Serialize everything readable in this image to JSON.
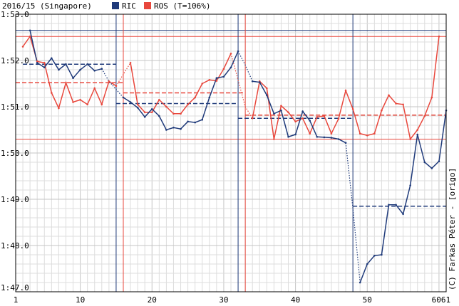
{
  "header": {
    "title": "2016/15 (Singapore)",
    "legend": [
      {
        "label": "RIC",
        "color": "#1f3a7a"
      },
      {
        "label": "ROS (T=106%)",
        "color": "#e8473c"
      }
    ]
  },
  "credit": "(C) Farkas Péter - [origo]",
  "chart_data": {
    "type": "line",
    "title": "2016/15 (Singapore)",
    "xlabel": "",
    "ylabel": "",
    "xlim": [
      1,
      61
    ],
    "ylim": [
      107,
      113
    ],
    "x_ticks": [
      1,
      10,
      20,
      30,
      40,
      50,
      60,
      61
    ],
    "x_tick_labels": [
      "1",
      "10",
      "20",
      "30",
      "40",
      "50",
      "60",
      "61"
    ],
    "y_ticks": [
      107,
      108,
      109,
      110,
      111,
      112,
      113
    ],
    "y_tick_labels": [
      "1:47.0",
      "1:48.0",
      "1:49.0",
      "1:50.0",
      "1:51.0",
      "1:52.0",
      "1:53.0"
    ],
    "grid": true,
    "series": [
      {
        "name": "RIC",
        "color": "#1f3a7a",
        "laps_solid": [
          [
            [
              3,
              112.65
            ],
            [
              4,
              111.95
            ],
            [
              5,
              111.85
            ],
            [
              6,
              112.05
            ],
            [
              7,
              111.8
            ],
            [
              8,
              111.92
            ],
            [
              9,
              111.62
            ],
            [
              10,
              111.8
            ],
            [
              11,
              111.92
            ],
            [
              12,
              111.78
            ],
            [
              13,
              111.82
            ]
          ],
          [
            [
              16,
              111.2
            ],
            [
              17,
              111.1
            ],
            [
              18,
              110.98
            ],
            [
              19,
              110.78
            ],
            [
              20,
              110.95
            ],
            [
              21,
              110.8
            ],
            [
              22,
              110.5
            ],
            [
              23,
              110.55
            ],
            [
              24,
              110.52
            ],
            [
              25,
              110.68
            ],
            [
              26,
              110.66
            ],
            [
              27,
              110.72
            ],
            [
              28,
              111.2
            ],
            [
              29,
              111.62
            ],
            [
              30,
              111.65
            ],
            [
              31,
              111.85
            ],
            [
              32,
              112.2
            ]
          ],
          [
            [
              34,
              111.55
            ],
            [
              35,
              111.53
            ],
            [
              36,
              111.25
            ],
            [
              37,
              110.85
            ],
            [
              38,
              110.92
            ],
            [
              39,
              110.35
            ],
            [
              40,
              110.4
            ],
            [
              41,
              110.9
            ],
            [
              42,
              110.7
            ],
            [
              43,
              110.35
            ],
            [
              44,
              110.34
            ],
            [
              45,
              110.33
            ],
            [
              46,
              110.3
            ],
            [
              47,
              110.22
            ]
          ],
          [
            [
              49,
              107.2
            ],
            [
              50,
              107.6
            ],
            [
              51,
              107.78
            ],
            [
              52,
              107.8
            ],
            [
              53,
              108.88
            ],
            [
              54,
              108.88
            ],
            [
              55,
              108.68
            ],
            [
              56,
              109.3
            ],
            [
              57,
              110.4
            ],
            [
              58,
              109.8
            ],
            [
              59,
              109.67
            ],
            [
              60,
              109.82
            ],
            [
              61,
              110.92
            ]
          ]
        ],
        "laps_dotted": [
          [
            [
              13,
              111.82
            ],
            [
              14,
              111.55
            ],
            [
              16,
              111.2
            ]
          ],
          [
            [
              32,
              112.2
            ],
            [
              33,
              111.9
            ],
            [
              34,
              111.55
            ]
          ],
          [
            [
              47,
              110.22
            ],
            [
              48,
              108.8
            ],
            [
              49,
              107.2
            ]
          ]
        ],
        "pit_laps": [
          15,
          32,
          48
        ],
        "stint_averages": [
          {
            "from": 2,
            "to": 15,
            "value": 111.92
          },
          {
            "from": 15,
            "to": 32,
            "value": 111.07
          },
          {
            "from": 32,
            "to": 48,
            "value": 110.75
          },
          {
            "from": 48,
            "to": 61,
            "value": 108.85
          }
        ]
      },
      {
        "name": "ROS",
        "color": "#e8473c",
        "laps_solid": [
          [
            [
              2,
              112.3
            ],
            [
              3,
              112.52
            ],
            [
              4,
              111.98
            ],
            [
              5,
              111.95
            ],
            [
              6,
              111.3
            ],
            [
              7,
              110.97
            ],
            [
              8,
              111.52
            ],
            [
              9,
              111.1
            ],
            [
              10,
              111.15
            ],
            [
              11,
              111.05
            ],
            [
              12,
              111.4
            ],
            [
              13,
              111.05
            ],
            [
              14,
              111.55
            ],
            [
              15,
              111.45
            ]
          ],
          [
            [
              17,
              111.95
            ],
            [
              18,
              111.05
            ],
            [
              19,
              110.88
            ],
            [
              20,
              110.88
            ],
            [
              21,
              111.15
            ],
            [
              22,
              111.0
            ],
            [
              23,
              110.85
            ],
            [
              24,
              110.85
            ],
            [
              25,
              111.05
            ],
            [
              26,
              111.2
            ],
            [
              27,
              111.5
            ],
            [
              28,
              111.58
            ],
            [
              29,
              111.56
            ],
            [
              30,
              111.82
            ],
            [
              31,
              112.15
            ]
          ],
          [
            [
              34,
              110.75
            ],
            [
              35,
              111.55
            ],
            [
              36,
              111.4
            ],
            [
              37,
              110.3
            ],
            [
              38,
              111.02
            ],
            [
              39,
              110.88
            ],
            [
              40,
              110.68
            ],
            [
              41,
              110.75
            ],
            [
              42,
              110.42
            ],
            [
              43,
              110.78
            ],
            [
              44,
              110.8
            ],
            [
              45,
              110.42
            ],
            [
              46,
              110.74
            ],
            [
              47,
              111.35
            ],
            [
              48,
              110.95
            ],
            [
              49,
              110.42
            ],
            [
              50,
              110.38
            ],
            [
              51,
              110.42
            ],
            [
              52,
              110.92
            ],
            [
              53,
              111.25
            ],
            [
              54,
              111.07
            ],
            [
              55,
              111.05
            ],
            [
              56,
              110.3
            ],
            [
              57,
              110.5
            ],
            [
              58,
              110.8
            ],
            [
              59,
              111.2
            ],
            [
              60,
              112.52
            ]
          ]
        ],
        "laps_dotted": [
          [
            [
              15,
              111.45
            ],
            [
              17,
              111.95
            ]
          ],
          [
            [
              31,
              112.15
            ],
            [
              33,
              111.0
            ],
            [
              34,
              110.75
            ]
          ]
        ],
        "pit_laps": [
          16,
          33
        ],
        "stint_averages": [
          {
            "from": 1,
            "to": 16,
            "value": 111.52
          },
          {
            "from": 16,
            "to": 33,
            "value": 111.3
          },
          {
            "from": 33,
            "to": 61,
            "value": 110.82
          }
        ],
        "reference_lines": [
          112.52,
          110.3
        ]
      }
    ],
    "extra_reference_lines": [
      {
        "value": 112.65,
        "color": "#1f3a7a"
      }
    ]
  }
}
